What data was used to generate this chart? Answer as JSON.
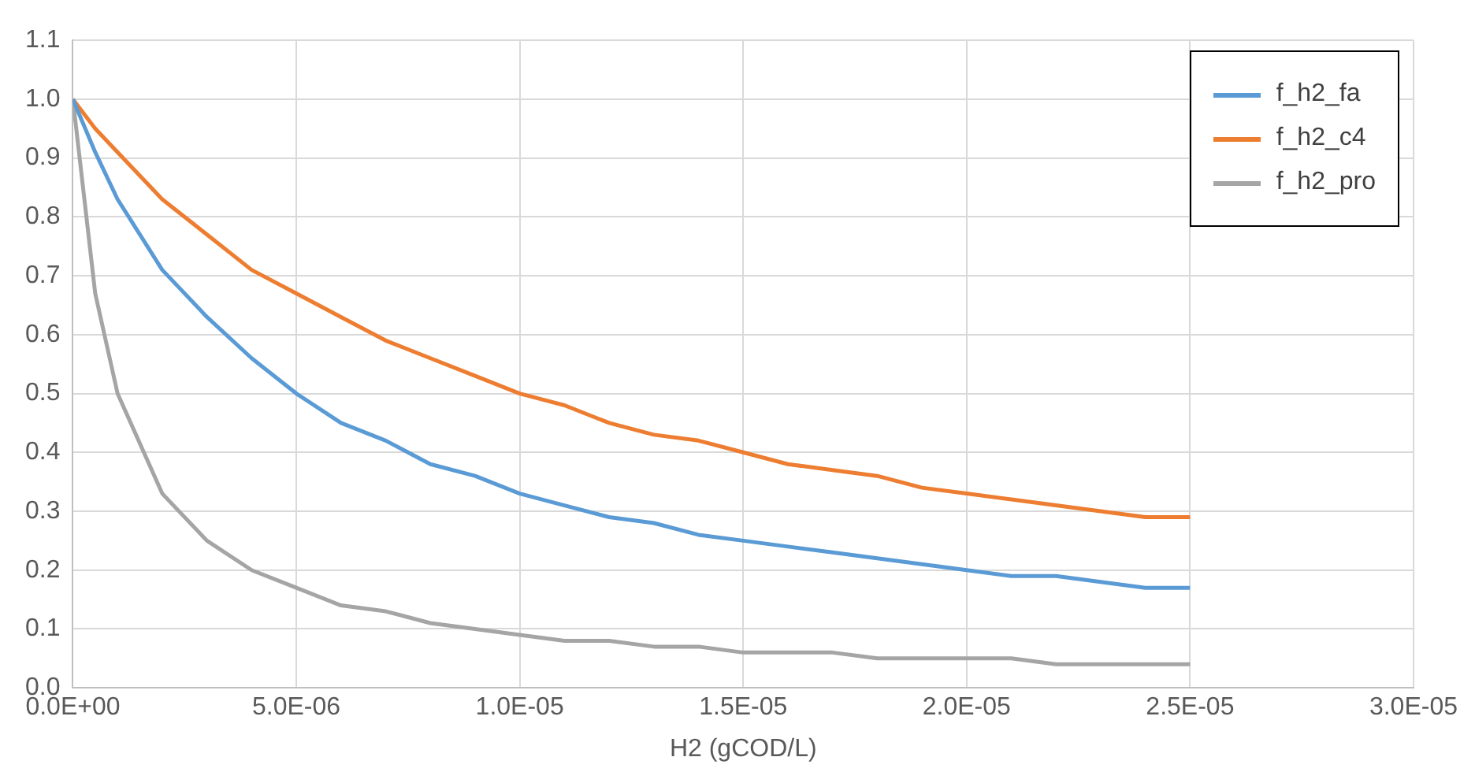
{
  "chart_data": {
    "type": "line",
    "xlabel": "H2 (gCOD/L)",
    "x": [
      0,
      5e-07,
      1e-06,
      2e-06,
      3e-06,
      4e-06,
      5e-06,
      6e-06,
      7e-06,
      8e-06,
      9e-06,
      1e-05,
      1.1e-05,
      1.2e-05,
      1.3e-05,
      1.4e-05,
      1.5e-05,
      1.6e-05,
      1.7e-05,
      1.8e-05,
      1.9e-05,
      2e-05,
      2.1e-05,
      2.2e-05,
      2.3e-05,
      2.4e-05,
      2.5e-05
    ],
    "series": [
      {
        "name": "f_h2_fa",
        "color": "#5b9bd5",
        "values": [
          1,
          0.91,
          0.83,
          0.71,
          0.63,
          0.56,
          0.5,
          0.45,
          0.42,
          0.38,
          0.36,
          0.33,
          0.31,
          0.29,
          0.28,
          0.26,
          0.25,
          0.24,
          0.23,
          0.22,
          0.21,
          0.2,
          0.19,
          0.19,
          0.18,
          0.17,
          0.17
        ]
      },
      {
        "name": "f_h2_c4",
        "color": "#ed7d31",
        "values": [
          1,
          0.95,
          0.91,
          0.83,
          0.77,
          0.71,
          0.67,
          0.63,
          0.59,
          0.56,
          0.53,
          0.5,
          0.48,
          0.45,
          0.43,
          0.42,
          0.4,
          0.38,
          0.37,
          0.36,
          0.34,
          0.33,
          0.32,
          0.31,
          0.3,
          0.29,
          0.29
        ]
      },
      {
        "name": "f_h2_pro",
        "color": "#a5a5a5",
        "values": [
          1,
          0.67,
          0.5,
          0.33,
          0.25,
          0.2,
          0.17,
          0.14,
          0.13,
          0.11,
          0.1,
          0.09,
          0.08,
          0.08,
          0.07,
          0.07,
          0.06,
          0.06,
          0.06,
          0.05,
          0.05,
          0.05,
          0.05,
          0.04,
          0.04,
          0.04,
          0.04
        ]
      }
    ],
    "xlim": [
      0,
      3e-05
    ],
    "xticks": [
      {
        "value": 0,
        "label": "0.0E+00"
      },
      {
        "value": 5e-06,
        "label": "5.0E-06"
      },
      {
        "value": 1e-05,
        "label": "1.0E-05"
      },
      {
        "value": 1.5e-05,
        "label": "1.5E-05"
      },
      {
        "value": 2e-05,
        "label": "2.0E-05"
      },
      {
        "value": 2.5e-05,
        "label": "2.5E-05"
      },
      {
        "value": 3e-05,
        "label": "3.0E-05"
      }
    ],
    "ylim": [
      0,
      1.1
    ],
    "yticks": [
      {
        "value": 0,
        "label": "0.0"
      },
      {
        "value": 0.1,
        "label": "0.1"
      },
      {
        "value": 0.2,
        "label": "0.2"
      },
      {
        "value": 0.3,
        "label": "0.3"
      },
      {
        "value": 0.4,
        "label": "0.4"
      },
      {
        "value": 0.5,
        "label": "0.5"
      },
      {
        "value": 0.6,
        "label": "0.6"
      },
      {
        "value": 0.7,
        "label": "0.7"
      },
      {
        "value": 0.8,
        "label": "0.8"
      },
      {
        "value": 0.9,
        "label": "0.9"
      },
      {
        "value": 1,
        "label": "1.0"
      },
      {
        "value": 1.1,
        "label": "1.1"
      }
    ],
    "grid": true,
    "legend": "top right",
    "marker": "none",
    "line_style": "solid"
  }
}
